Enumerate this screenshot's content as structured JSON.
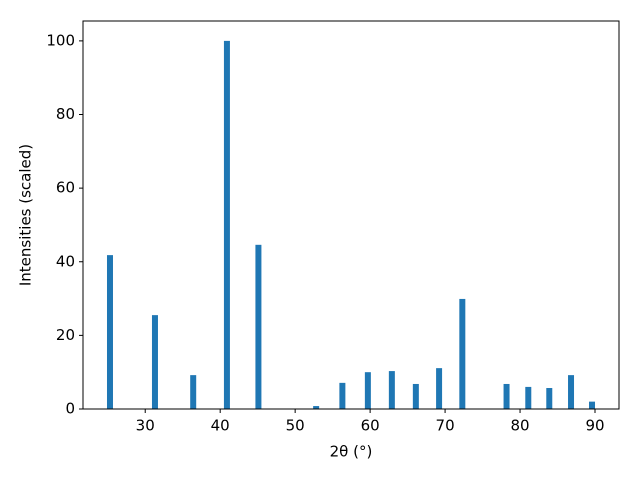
{
  "chart_data": {
    "type": "bar",
    "x_label": "2θ (°)",
    "y_label": "Intensities (scaled)",
    "x": [
      25.3,
      31.3,
      36.4,
      40.9,
      45.1,
      52.8,
      56.3,
      59.7,
      62.9,
      66.1,
      69.2,
      72.3,
      78.2,
      81.1,
      83.9,
      86.8,
      89.6
    ],
    "values": [
      41.8,
      25.5,
      9.2,
      100,
      44.6,
      0.8,
      7.1,
      10,
      10.3,
      6.8,
      11.1,
      29.9,
      6.8,
      6,
      5.7,
      9.2,
      2
    ],
    "color": "#1f77b4",
    "xlim": [
      21.7,
      93.2
    ],
    "ylim": [
      0,
      105.4
    ],
    "xticks": [
      30,
      40,
      50,
      60,
      70,
      80,
      90
    ],
    "yticks": [
      0,
      20,
      40,
      60,
      80,
      100
    ]
  }
}
